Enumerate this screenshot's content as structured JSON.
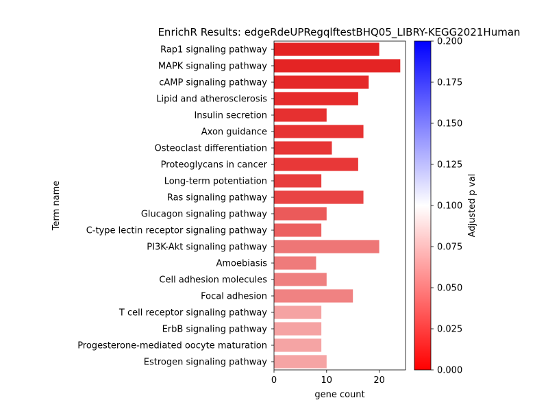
{
  "chart_data": {
    "type": "bar",
    "orientation": "horizontal",
    "title": "EnrichR Results: edgeRdeUPRegqlftestBHQ05_LIBRY-KEGG2021Human",
    "xlabel": "gene count",
    "ylabel": "Term name",
    "xlim": [
      0,
      25
    ],
    "xticks": [
      0,
      10,
      20
    ],
    "grid": false,
    "categories": [
      "Rap1 signaling pathway",
      "MAPK signaling pathway",
      "cAMP signaling pathway",
      "Lipid and atherosclerosis",
      "Insulin secretion",
      "Axon guidance",
      "Osteoclast differentiation",
      "Proteoglycans in cancer",
      "Long-term potentiation",
      "Ras signaling pathway",
      "Glucagon signaling pathway",
      "C-type lectin receptor signaling pathway",
      "PI3K-Akt signaling pathway",
      "Amoebiasis",
      "Cell adhesion molecules",
      "Focal adhesion",
      "T cell receptor signaling pathway",
      "ErbB signaling pathway",
      "Progesterone-mediated oocyte maturation",
      "Estrogen signaling pathway"
    ],
    "values": [
      20,
      24,
      18,
      16,
      10,
      17,
      11,
      16,
      9,
      17,
      10,
      9,
      20,
      8,
      10,
      15,
      9,
      9,
      9,
      10
    ],
    "bar_colors": [
      "#e42323",
      "#e42424",
      "#e52828",
      "#e62c2c",
      "#e63030",
      "#e73333",
      "#e73535",
      "#e83838",
      "#e83d3d",
      "#e94444",
      "#eb5a5a",
      "#ec6060",
      "#ee7676",
      "#ef7b7b",
      "#ef8080",
      "#f08282",
      "#f5a3a3",
      "#f5a3a3",
      "#f5a4a4",
      "#f5a4a4"
    ],
    "colorbar": {
      "label": "Adjusted p val",
      "range": [
        0,
        0.2
      ],
      "ticks": [
        "0.000",
        "0.025",
        "0.050",
        "0.075",
        "0.100",
        "0.125",
        "0.150",
        "0.175",
        "0.200"
      ],
      "colors": [
        "#ff0000",
        "#ffffff",
        "#0000ff"
      ]
    }
  }
}
